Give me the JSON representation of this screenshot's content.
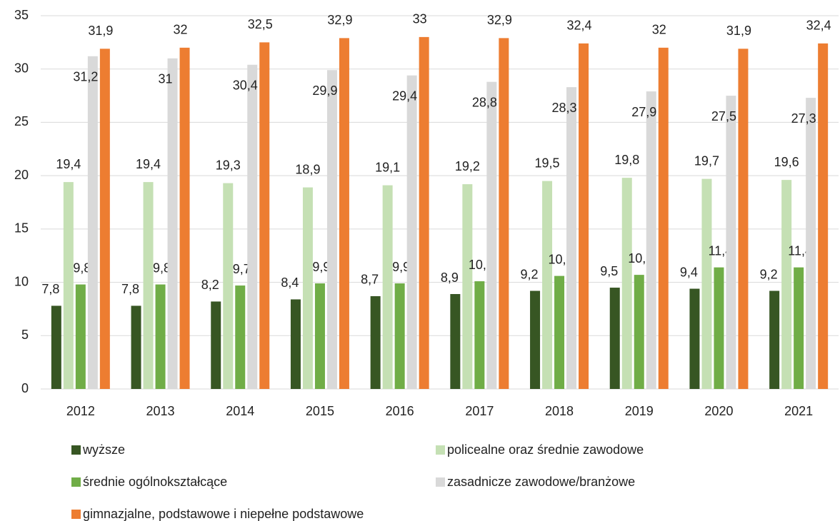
{
  "chart_data": {
    "type": "bar",
    "categories": [
      "2012",
      "2013",
      "2014",
      "2015",
      "2016",
      "2017",
      "2018",
      "2019",
      "2020",
      "2021"
    ],
    "series": [
      {
        "name": "wyższe",
        "color": "#375623",
        "values": [
          7.8,
          7.8,
          8.2,
          8.4,
          8.7,
          8.9,
          9.2,
          9.5,
          9.4,
          9.2
        ],
        "value_labels": [
          "7,8",
          "7,8",
          "8,2",
          "8,4",
          "8,7",
          "8,9",
          "9,2",
          "9,5",
          "9,4",
          "9,2"
        ]
      },
      {
        "name": "policealne oraz średnie zawodowe",
        "color": "#c5e0b4",
        "values": [
          19.4,
          19.4,
          19.3,
          18.9,
          19.1,
          19.2,
          19.5,
          19.8,
          19.7,
          19.6
        ],
        "value_labels": [
          "19,4",
          "19,4",
          "19,3",
          "18,9",
          "19,1",
          "19,2",
          "19,5",
          "19,8",
          "19,7",
          "19,6"
        ]
      },
      {
        "name": "średnie ogólnokształcące",
        "color": "#70ad47",
        "values": [
          9.8,
          9.8,
          9.7,
          9.9,
          9.9,
          10.1,
          10.6,
          10.7,
          11.4,
          11.4
        ],
        "value_labels": [
          "9,8",
          "9,8",
          "9,7",
          "9,9",
          "9,9",
          "10,1",
          "10,6",
          "10,7",
          "11,4",
          "11,4"
        ]
      },
      {
        "name": "zasadnicze zawodowe/branżowe",
        "color": "#d9d9d9",
        "values": [
          31.2,
          31,
          30.4,
          29.9,
          29.4,
          28.8,
          28.3,
          27.9,
          27.5,
          27.3
        ],
        "value_labels": [
          "31,2",
          "31",
          "30,4",
          "29,9",
          "29,4",
          "28,8",
          "28,3",
          "27,9",
          "27,5",
          "27,3"
        ]
      },
      {
        "name": "gimnazjalne, podstawowe i niepełne podstawowe",
        "color": "#ed7d31",
        "values": [
          31.9,
          32,
          32.5,
          32.9,
          33,
          32.9,
          32.4,
          32,
          31.9,
          32.4
        ],
        "value_labels": [
          "31,9",
          "32",
          "32,5",
          "32,9",
          "33",
          "32,9",
          "32,4",
          "32",
          "31,9",
          "32,4"
        ]
      }
    ],
    "ylim": [
      0,
      35
    ],
    "yticks": [
      0,
      5,
      10,
      15,
      20,
      25,
      30,
      35
    ],
    "grid": true
  }
}
